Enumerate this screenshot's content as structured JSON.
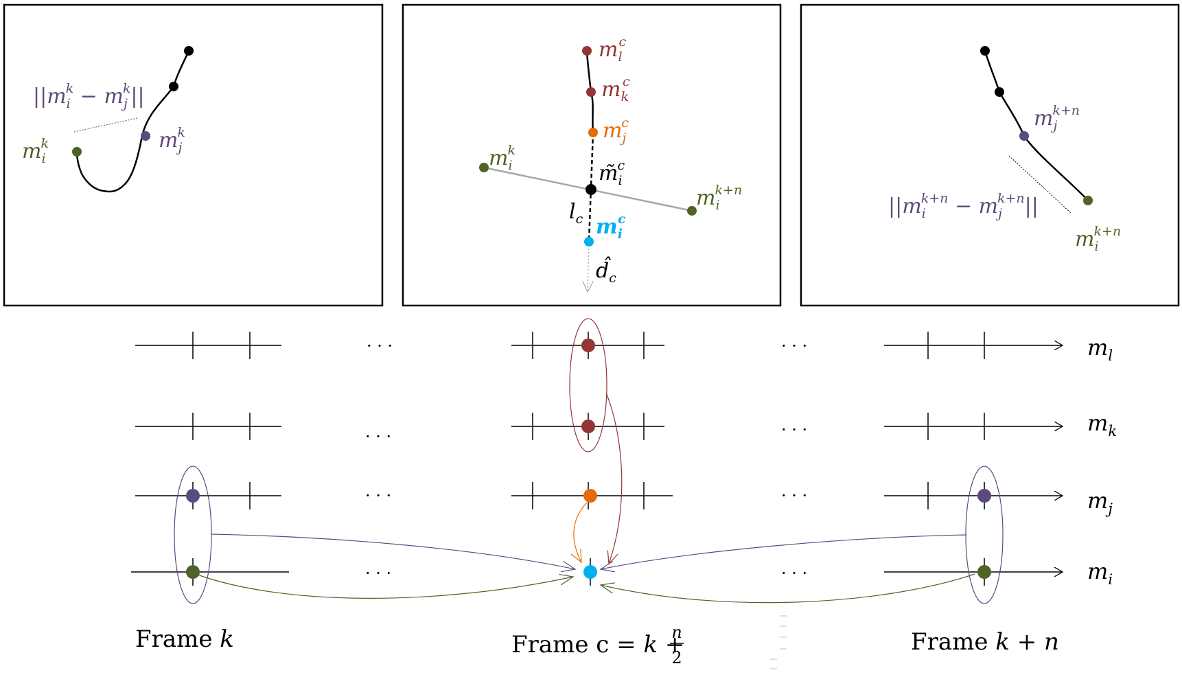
{
  "colors": {
    "black": "#000000",
    "purple": "#5a4a7e",
    "green": "#4f6228",
    "red": "#943634",
    "orange": "#e36c09",
    "cyan": "#00b0f0",
    "gray": "#a6a6a6",
    "dark_green_text": "#4f6228",
    "purple_text": "#5f497a"
  },
  "panels": {
    "left": {
      "dist_label_pre": "||",
      "dist_m1": "m",
      "dist_sub1": "i",
      "dist_sup1": "k",
      "dist_minus": " − ",
      "dist_m2": "m",
      "dist_sub2": "j",
      "dist_sup2": "k",
      "dist_label_post": "||",
      "mi_m": "m",
      "mi_sub": "i",
      "mi_sup": "k",
      "mj_m": "m",
      "mj_sub": "j",
      "mj_sup": "k"
    },
    "middle": {
      "ml_m": "m",
      "ml_sub": "l",
      "ml_sup": "c",
      "mk_m": "m",
      "mk_sub": "k",
      "mk_sup": "c",
      "mj_m": "m",
      "mj_sub": "j",
      "mj_sup": "c",
      "mik_m": "m",
      "mik_sub": "i",
      "mik_sup": "k",
      "mtilde_m": "m̃",
      "mtilde_sub": "i",
      "mtilde_sup": "c",
      "mikn_m": "m",
      "mikn_sub": "i",
      "mikn_sup": "k+n",
      "lc_l": "l",
      "lc_sub": "c",
      "mic_m": "m",
      "mic_sub": "i",
      "mic_sup": "c",
      "dc_d": "d̂",
      "dc_sub": "c"
    },
    "right": {
      "mj_m": "m",
      "mj_sub": "j",
      "mj_sup": "k+n",
      "dist_label_pre": "||",
      "dist_m1": "m",
      "dist_sub1": "i",
      "dist_sup1": "k+n",
      "dist_minus": " − ",
      "dist_m2": "m",
      "dist_sub2": "j",
      "dist_sup2": "k+n",
      "dist_label_post": "||",
      "mi_m": "m",
      "mi_sub": "i",
      "mi_sup": "k+n"
    }
  },
  "timeline": {
    "ellipsis": "· · ·",
    "rows": [
      {
        "m": "m",
        "sub": "l"
      },
      {
        "m": "m",
        "sub": "k"
      },
      {
        "m": "m",
        "sub": "j"
      },
      {
        "m": "m",
        "sub": "i"
      }
    ]
  },
  "frames": {
    "k_prefix": "Frame ",
    "k_var": "k",
    "c_prefix": "Frame c = ",
    "c_var": "k",
    "c_plus": " + ",
    "c_num": "n",
    "c_den": "2",
    "kn_prefix": "Frame ",
    "kn_var": "k",
    "kn_plus": " + ",
    "kn_n": "n"
  }
}
